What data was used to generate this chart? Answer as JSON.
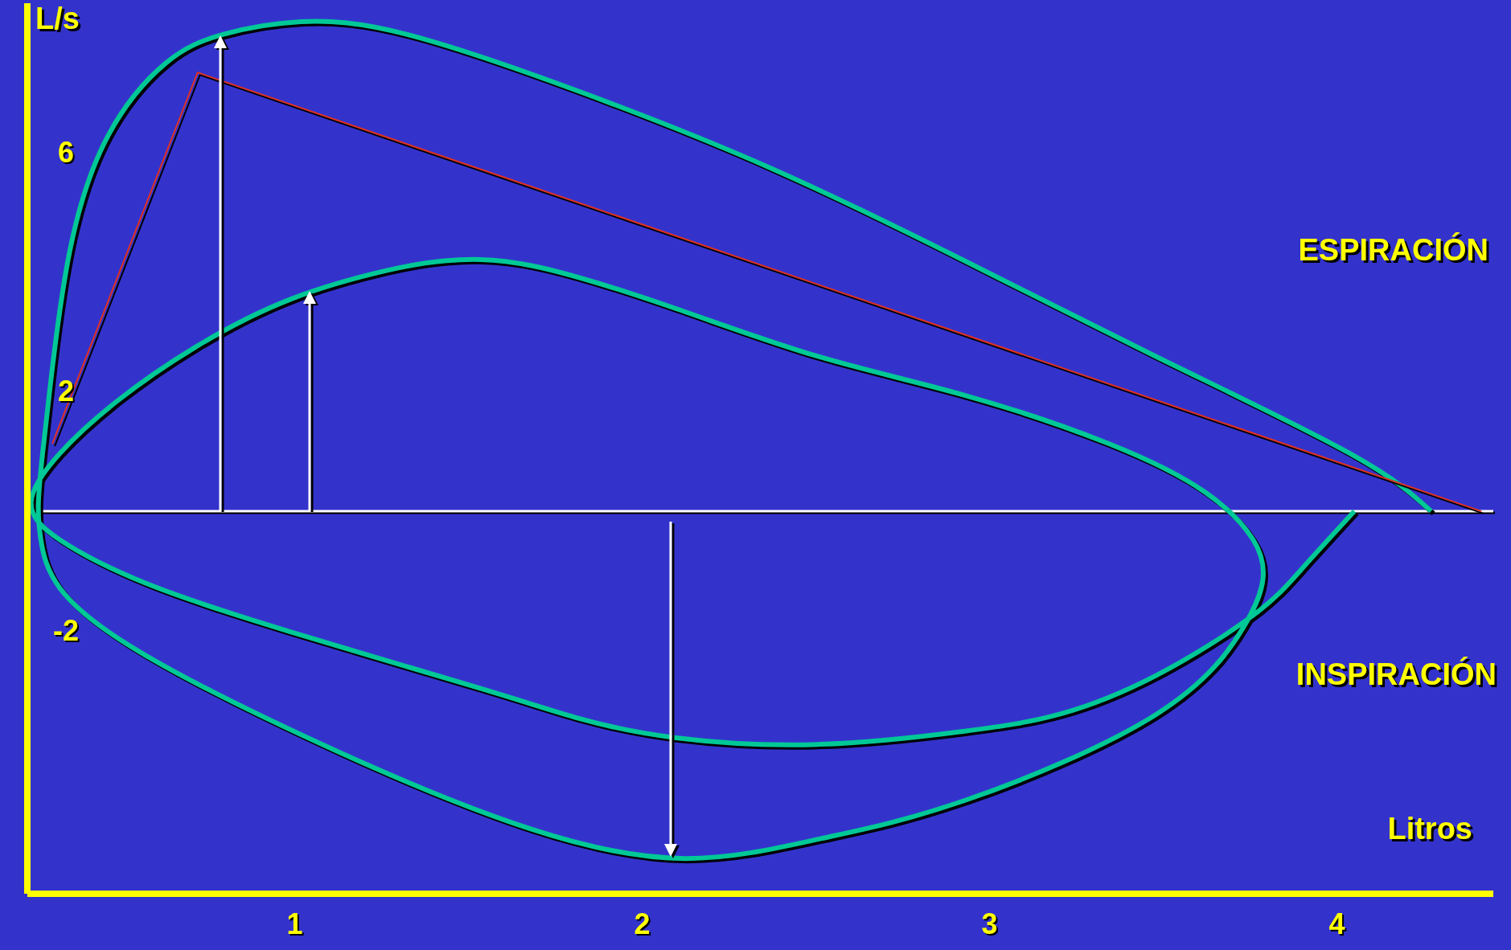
{
  "chart_data": {
    "type": "line",
    "xlabel": "Litros",
    "ylabel": "L/s",
    "annotations": [
      "ESPIRACIÓN",
      "INSPIRACIÓN"
    ],
    "xlim": [
      0.23,
      4.45
    ],
    "ylim": [
      -6.4,
      8.5
    ],
    "xticks": [
      1,
      2,
      3,
      4
    ],
    "yticks": [
      6,
      2,
      -2
    ],
    "ref_lines": [
      {
        "axis": "y",
        "value": 0,
        "color": "#ffffff"
      }
    ],
    "series": [
      {
        "color": "#00c896",
        "x": [
          4.05,
          3.898,
          3.759,
          3.482,
          3.205,
          2.928,
          2.512,
          2.097,
          1.82,
          1.543,
          0.989,
          0.573,
          0.324,
          0.241,
          0.324,
          0.49,
          0.712,
          0.989,
          1.266,
          1.432,
          1.681,
          2.097,
          2.512,
          2.928,
          3.343,
          3.62,
          3.759,
          3.787,
          3.731,
          3.482,
          2.928,
          2.512,
          2.125,
          1.681,
          1.127,
          0.573,
          0.324,
          0.269,
          0.262,
          0.274,
          0.296,
          0.352,
          0.463,
          0.629,
          0.795,
          1.017,
          1.321,
          1.82,
          2.374,
          2.928,
          3.482,
          4.036,
          4.271
        ],
        "values": [
          0,
          -0.97,
          -1.74,
          -2.74,
          -3.39,
          -3.68,
          -3.9,
          -3.79,
          -3.47,
          -2.98,
          -2.02,
          -1.21,
          -0.48,
          0.16,
          0.97,
          1.85,
          2.74,
          3.55,
          4.03,
          4.19,
          4.11,
          3.39,
          2.58,
          1.94,
          1.13,
          0.32,
          -0.48,
          -1.13,
          -1.94,
          -3.39,
          -4.84,
          -5.48,
          -5.81,
          -5.32,
          -4.03,
          -2.42,
          -1.29,
          -0.48,
          0.16,
          0.97,
          2.1,
          4.35,
          6.29,
          7.5,
          7.98,
          8.19,
          7.98,
          7.02,
          5.73,
          4.19,
          2.58,
          0.97,
          0
        ]
      },
      {
        "color": "#e03020",
        "x": [
          0.302,
          0.72,
          4.416
        ],
        "values": [
          1.13,
          7.34,
          0
        ]
      }
    ]
  }
}
